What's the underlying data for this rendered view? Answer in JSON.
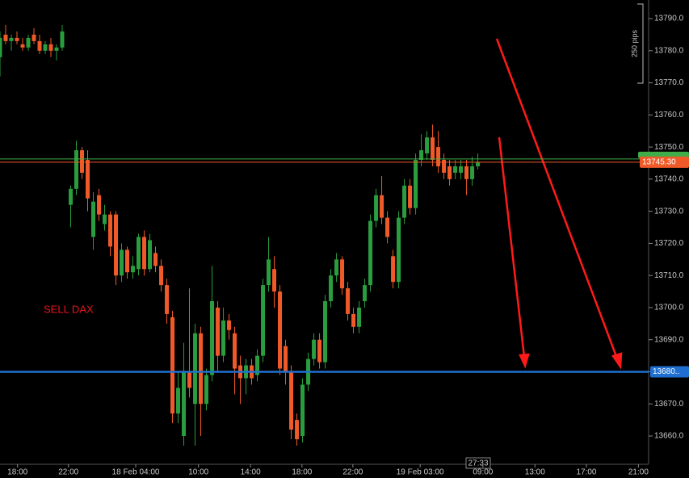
{
  "chart_data": {
    "type": "candlestick",
    "annotation": "SELL DAX",
    "timer": "27:33",
    "range_label": "250 pips",
    "x": [
      0,
      1,
      2,
      3,
      4,
      5,
      6,
      7,
      8,
      9,
      10,
      11,
      12.5,
      13.5,
      14.5,
      15.5,
      16.5,
      17.5,
      18.5,
      19.5,
      20.5,
      21.5,
      22.5,
      23.5,
      24.5,
      25.5,
      26.5,
      27.5,
      28.5,
      29.5,
      30.5,
      31.5,
      32.5,
      33.5,
      34.5,
      35.5,
      36.5,
      37.5,
      38.5,
      39.5,
      40.5,
      41.5,
      42.5,
      43.5,
      44.5,
      45.5,
      46.5,
      47.5,
      48.5,
      49.5,
      50.5,
      51.5,
      52.5,
      53.5,
      54.5,
      55.5,
      56.5,
      57.5,
      58.5,
      59.5,
      60.5,
      61.5,
      62.5,
      63.5,
      64.5,
      65.5,
      66.5,
      67.5,
      68.5,
      69.5,
      70.5,
      71.5,
      72.5,
      73.5,
      74.5,
      75.5,
      76.5,
      77.5,
      78.5,
      79.5,
      80.5,
      81.5,
      82.5,
      83.5,
      84.5
    ],
    "open": [
      13778,
      13785,
      13783,
      13784,
      13782,
      13781,
      13785,
      13783,
      13780,
      13782,
      13780,
      13781,
      13732,
      13737,
      13749,
      13746,
      13722,
      13735,
      13726,
      13729,
      13729,
      13710,
      13718,
      13711,
      13712,
      13722,
      13712,
      13717,
      13713,
      13707,
      13697,
      13667,
      13660,
      13680,
      13670,
      13692,
      13670,
      13679,
      13700,
      13685,
      13696,
      13692,
      13682,
      13678,
      13682,
      13679,
      13685,
      13707,
      13712,
      13705,
      13688,
      13680,
      13665,
      13660,
      13676,
      13684,
      13690,
      13683,
      13702,
      13710,
      13715,
      13706,
      13698,
      13694,
      13702,
      13707,
      13727,
      13735,
      13728,
      13716,
      13708,
      13728,
      13738,
      13731,
      13746,
      13748,
      13753,
      13750,
      13746,
      13744,
      13742,
      13742,
      13744,
      13740,
      13744
    ],
    "high": [
      13786,
      13788,
      13785,
      13786,
      13784,
      13785,
      13787,
      13785,
      13783,
      13784,
      13782,
      13788,
      13738,
      13752,
      13750,
      13749,
      13736,
      13737,
      13732,
      13730,
      13730,
      13720,
      13719,
      13716,
      13723,
      13724,
      13723,
      13719,
      13715,
      13709,
      13699,
      13680,
      13689,
      13706,
      13695,
      13694,
      13681,
      13713,
      13702,
      13700,
      13698,
      13694,
      13685,
      13684,
      13684,
      13687,
      13709,
      13722,
      13716,
      13707,
      13690,
      13682,
      13667,
      13678,
      13686,
      13692,
      13692,
      13704,
      13712,
      13717,
      13716,
      13708,
      13700,
      13702,
      13709,
      13729,
      13737,
      13741,
      13730,
      13718,
      13730,
      13740,
      13740,
      13748,
      13754,
      13755,
      13757,
      13755,
      13748,
      13746,
      13746,
      13746,
      13746,
      13747,
      13748
    ],
    "low": [
      13772,
      13782,
      13780,
      13782,
      13780,
      13780,
      13782,
      13779,
      13779,
      13778,
      13777,
      13780,
      13725,
      13735,
      13740,
      13730,
      13718,
      13727,
      13724,
      13716,
      13707,
      13708,
      13709,
      13709,
      13710,
      13710,
      13711,
      13711,
      13705,
      13695,
      13664,
      13664,
      13657,
      13672,
      13657,
      13660,
      13668,
      13677,
      13680,
      13683,
      13690,
      13673,
      13670,
      13673,
      13676,
      13677,
      13683,
      13705,
      13700,
      13679,
      13676,
      13659,
      13657,
      13658,
      13674,
      13682,
      13681,
      13681,
      13700,
      13708,
      13704,
      13696,
      13692,
      13692,
      13700,
      13705,
      13725,
      13726,
      13720,
      13706,
      13706,
      13726,
      13729,
      13729,
      13744,
      13746,
      13744,
      13742,
      13740,
      13738,
      13740,
      13740,
      13735,
      13738,
      13743
    ],
    "close": [
      13784,
      13783,
      13784,
      13783,
      13781,
      13784,
      13783,
      13780,
      13782,
      13780,
      13781,
      13786,
      13737,
      13749,
      13742,
      13734,
      13733,
      13729,
      13729,
      13719,
      13710,
      13718,
      13711,
      13713,
      13722,
      13712,
      13721,
      13713,
      13707,
      13698,
      13667,
      13675,
      13680,
      13675,
      13692,
      13670,
      13679,
      13702,
      13685,
      13696,
      13693,
      13681,
      13678,
      13682,
      13678,
      13685,
      13707,
      13715,
      13705,
      13681,
      13680,
      13662,
      13659,
      13676,
      13684,
      13690,
      13683,
      13702,
      13710,
      13715,
      13706,
      13698,
      13694,
      13700,
      13707,
      13727,
      13735,
      13728,
      13722,
      13708,
      13728,
      13738,
      13731,
      13746,
      13749,
      13753,
      13746,
      13744,
      13742,
      13740,
      13744,
      13744,
      13740,
      13744,
      13745.3
    ],
    "up_color": "#2a9d3f",
    "down_color": "#f05a28",
    "xlim": [
      0,
      114.7
    ],
    "ylim": [
      13651.2,
      13795.8
    ],
    "xticks": [
      {
        "value": 3.1,
        "label": "18:00"
      },
      {
        "value": 12.1,
        "label": "22:00"
      },
      {
        "value": 24,
        "label": "18 Feb 04:00"
      },
      {
        "value": 35.1,
        "label": "10:00"
      },
      {
        "value": 44.3,
        "label": "14:00"
      },
      {
        "value": 53.4,
        "label": "18:00"
      },
      {
        "value": 62.4,
        "label": "22:00"
      },
      {
        "value": 74.3,
        "label": "19 Feb 03:00"
      },
      {
        "value": 85.4,
        "label": "09:00"
      },
      {
        "value": 94.6,
        "label": "13:00"
      },
      {
        "value": 103.7,
        "label": "17:00"
      },
      {
        "value": 112.9,
        "label": "21:00"
      }
    ],
    "yticks": [
      {
        "value": 13660,
        "label": "13660.0"
      },
      {
        "value": 13670,
        "label": "13670.0"
      },
      {
        "value": 13680,
        "label": "13680.0"
      },
      {
        "value": 13690,
        "label": "13690.0"
      },
      {
        "value": 13700,
        "label": "13700.0"
      },
      {
        "value": 13710,
        "label": "13710.0"
      },
      {
        "value": 13720,
        "label": "13720.0"
      },
      {
        "value": 13730,
        "label": "13730.0"
      },
      {
        "value": 13740,
        "label": "13740.0"
      },
      {
        "value": 13750,
        "label": "13750.0"
      },
      {
        "value": 13760,
        "label": "13760.0"
      },
      {
        "value": 13770,
        "label": "13770.0"
      },
      {
        "value": 13780,
        "label": "13780.0"
      },
      {
        "value": 13790,
        "label": "13790.0"
      }
    ],
    "hlines": [
      {
        "value": 13746.3,
        "color": "#3fae49"
      },
      {
        "value": 13745.3,
        "color": "#f05a28",
        "label": "13745.30"
      },
      {
        "value": 13680,
        "color": "#1f6fd1",
        "label": "13680.."
      }
    ]
  }
}
